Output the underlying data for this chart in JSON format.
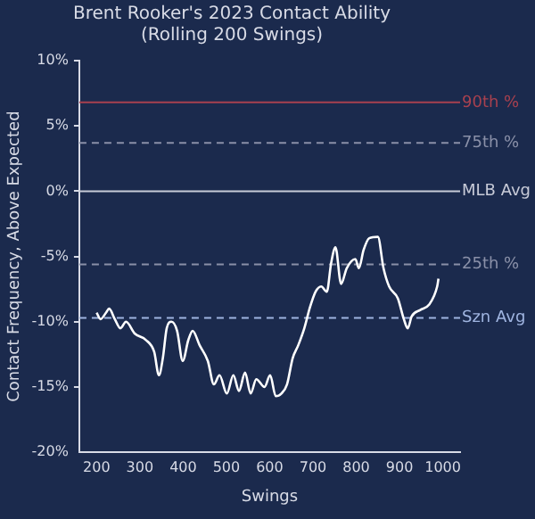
{
  "chart_data": {
    "type": "line",
    "title": "Brent Rooker's 2023 Contact Ability\n(Rolling 200 Swings)",
    "xlabel": "Swings",
    "ylabel": "Contact Frequency, Above Expected",
    "x": [
      200,
      209,
      222,
      229,
      242,
      255,
      268,
      288,
      314,
      333,
      344,
      353,
      362,
      373,
      386,
      399,
      412,
      422,
      438,
      457,
      471,
      484,
      501,
      516,
      529,
      543,
      556,
      569,
      588,
      601,
      614,
      627,
      640,
      653,
      666,
      680,
      693,
      706,
      719,
      732,
      742,
      752,
      765,
      778,
      798,
      806,
      817,
      830,
      850,
      863,
      876,
      896,
      910,
      919,
      928,
      948,
      968,
      987,
      990
    ],
    "series": [
      {
        "color": "#ffffff",
        "values": [
          -9.3,
          -9.8,
          -9.3,
          -9.0,
          -9.8,
          -10.5,
          -10.0,
          -10.9,
          -11.4,
          -12.3,
          -14.1,
          -12.8,
          -10.5,
          -10.0,
          -10.7,
          -13.0,
          -11.4,
          -10.7,
          -11.8,
          -13.0,
          -14.8,
          -14.1,
          -15.5,
          -14.1,
          -15.3,
          -13.9,
          -15.5,
          -14.4,
          -15.0,
          -14.1,
          -15.7,
          -15.5,
          -14.8,
          -12.8,
          -11.8,
          -10.5,
          -8.9,
          -7.7,
          -7.3,
          -7.7,
          -5.5,
          -4.3,
          -7.1,
          -5.9,
          -5.2,
          -5.9,
          -4.5,
          -3.6,
          -3.5,
          -5.9,
          -7.3,
          -8.2,
          -9.8,
          -10.5,
          -9.6,
          -9.1,
          -8.7,
          -7.3,
          -6.7
        ]
      }
    ],
    "xlim": [
      160,
      1040
    ],
    "ylim": [
      -20,
      10
    ],
    "xticks": [
      200,
      300,
      400,
      500,
      600,
      700,
      800,
      900,
      1000
    ],
    "yticks": [
      {
        "value": -20,
        "label": "-20%"
      },
      {
        "value": -15,
        "label": "-15%"
      },
      {
        "value": -10,
        "label": "-10%"
      },
      {
        "value": -5,
        "label": "-5%"
      },
      {
        "value": 0,
        "label": "0%"
      },
      {
        "value": 5,
        "label": "5%"
      },
      {
        "value": 10,
        "label": "10%"
      }
    ],
    "ref_lines": [
      {
        "axis": "y",
        "value": 6.8,
        "label": "90th %",
        "color": "#a8414f",
        "line_style": "solid"
      },
      {
        "axis": "y",
        "value": 3.7,
        "label": "75th %",
        "color": "#8a90a8",
        "line_style": "dashed"
      },
      {
        "axis": "y",
        "value": 0,
        "label": "MLB Avg",
        "color": "#c8cbd8",
        "line_style": "solid"
      },
      {
        "axis": "y",
        "value": -5.6,
        "label": "25th %",
        "color": "#8a90a8",
        "line_style": "dashed"
      },
      {
        "axis": "y",
        "value": -9.7,
        "label": "Szn Avg",
        "color": "#9fb4e0",
        "line_style": "dashed"
      }
    ],
    "grid": false,
    "legend": false,
    "marker": "none",
    "line_style": "solid"
  }
}
